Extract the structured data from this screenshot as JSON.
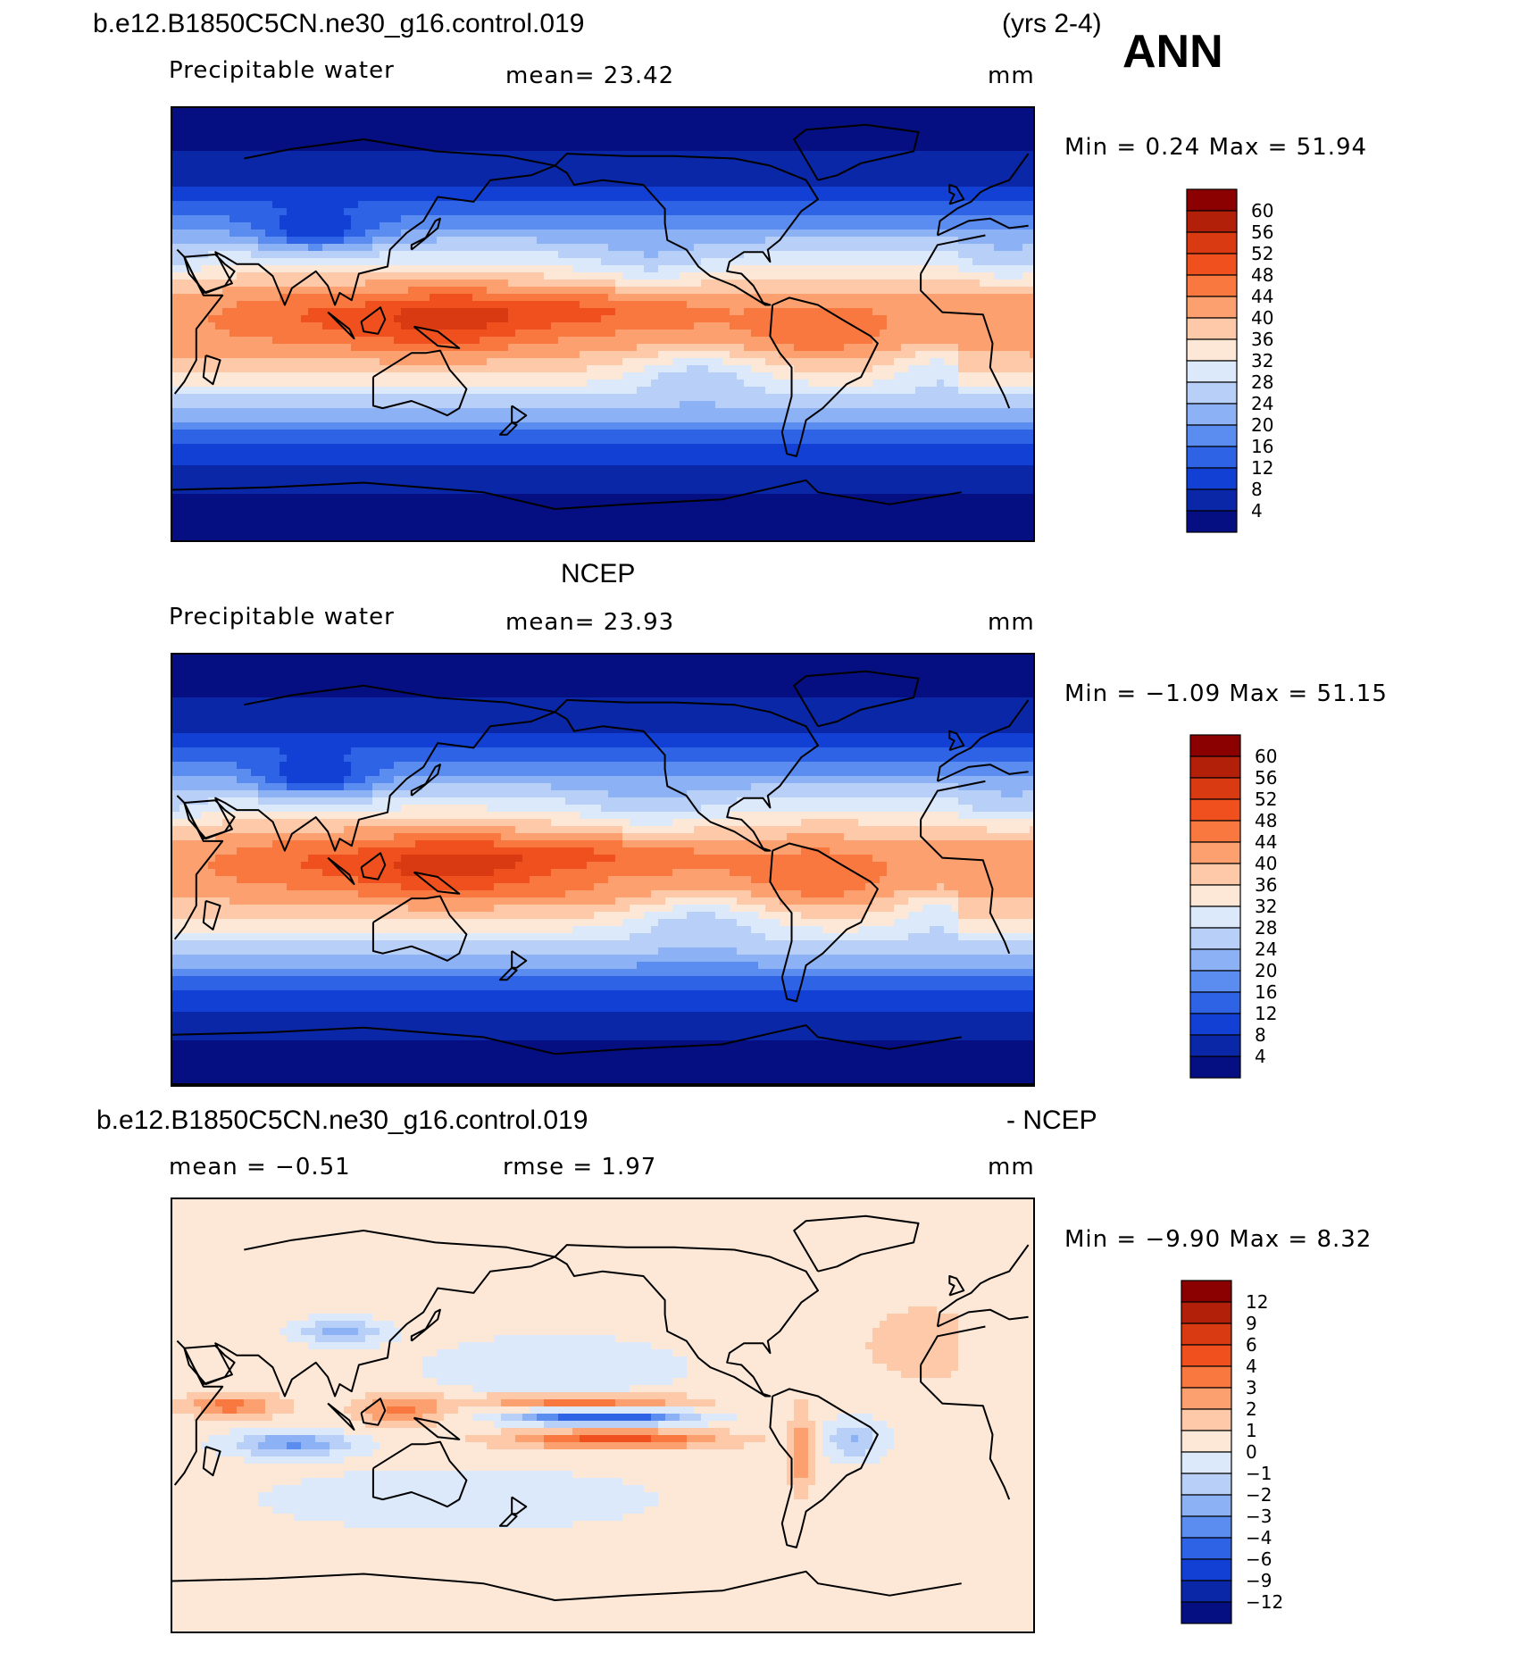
{
  "header": {
    "case_title": "b.e12.B1850C5CN.ne30_g16.control.019",
    "years": "(yrs 2-4)",
    "season": "ANN"
  },
  "chart_data": [
    {
      "type": "heatmap",
      "variable_label": "Precipitable water",
      "mean_text": "mean=   23.42",
      "units": "mm",
      "minmax_text": "Min =    0.24  Max =   51.94",
      "colorbar": {
        "levels": [
          "60",
          "56",
          "52",
          "48",
          "44",
          "40",
          "36",
          "32",
          "28",
          "24",
          "20",
          "16",
          "12",
          "8",
          "4"
        ],
        "colors": [
          "#8b0000",
          "#b3200a",
          "#d93a12",
          "#f0501e",
          "#f87840",
          "#fca070",
          "#fdc9a8",
          "#fde8d8",
          "#dce9fb",
          "#b8d0f8",
          "#8cb1f5",
          "#5b8cf0",
          "#2f63e6",
          "#1240d4",
          "#0a27a8",
          "#050f82"
        ]
      },
      "field": {
        "equator_value": 44,
        "pole_value": 3,
        "contour_step": 4
      }
    },
    {
      "type": "heatmap",
      "title": "NCEP",
      "variable_label": "Precipitable water",
      "mean_text": "mean=   23.93",
      "units": "mm",
      "minmax_text": "Min =   −1.09  Max =   51.15",
      "colorbar": {
        "levels": [
          "60",
          "56",
          "52",
          "48",
          "44",
          "40",
          "36",
          "32",
          "28",
          "24",
          "20",
          "16",
          "12",
          "8",
          "4"
        ],
        "colors": [
          "#8b0000",
          "#b3200a",
          "#d93a12",
          "#f0501e",
          "#f87840",
          "#fca070",
          "#fdc9a8",
          "#fde8d8",
          "#dce9fb",
          "#b8d0f8",
          "#8cb1f5",
          "#5b8cf0",
          "#2f63e6",
          "#1240d4",
          "#0a27a8",
          "#050f82"
        ]
      },
      "field": {
        "equator_value": 43,
        "pole_value": 3,
        "contour_step": 4
      }
    },
    {
      "type": "heatmap",
      "title_left": "b.e12.B1850C5CN.ne30_g16.control.019",
      "title_right": "- NCEP",
      "mean_text": "mean =   −0.51",
      "rmse_text": "rmse =    1.97",
      "units": "mm",
      "minmax_text": "Min =   −9.90  Max =     8.32",
      "colorbar": {
        "levels": [
          "12",
          "9",
          "6",
          "4",
          "3",
          "2",
          "1",
          "0",
          "−1",
          "−2",
          "−3",
          "−4",
          "−6",
          "−9",
          "−12"
        ],
        "colors": [
          "#8b0000",
          "#b3200a",
          "#d93a12",
          "#f0501e",
          "#f87840",
          "#fca070",
          "#fdc9a8",
          "#fde8d8",
          "#dce9fb",
          "#b8d0f8",
          "#8cb1f5",
          "#5b8cf0",
          "#2f63e6",
          "#1240d4",
          "#0a27a8",
          "#050f82"
        ]
      },
      "field": {
        "background_value": 0,
        "contour_step": 1
      }
    }
  ]
}
